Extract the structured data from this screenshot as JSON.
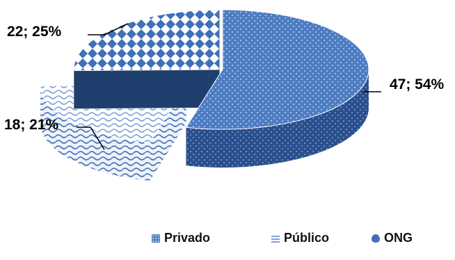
{
  "chart_data": {
    "type": "pie",
    "style": "3d-exploded",
    "slices": [
      {
        "name": "Privado",
        "value": 47,
        "percent": 54,
        "label": "47; 54%",
        "color": "#4a78c0",
        "pattern": "dots"
      },
      {
        "name": "Público",
        "value": 18,
        "percent": 21,
        "label": "18; 21%",
        "color": "#8fb0e0",
        "pattern": "wave"
      },
      {
        "name": "ONG",
        "value": 22,
        "percent": 25,
        "label": "22; 25%",
        "color": "#3c6cb4",
        "pattern": "diamond"
      }
    ],
    "legend_position": "bottom",
    "legend": [
      "Privado",
      "Público",
      "ONG"
    ]
  },
  "colors": {
    "privado_top": "#4d7cc2",
    "privado_side": "#2a4f8c",
    "publico_base": "#ffffff",
    "publico_wave": "#7fa3d8",
    "ong_base": "#ffffff",
    "ong_diamond": "#3f70b8",
    "ong_side": "#1f3f6e"
  }
}
